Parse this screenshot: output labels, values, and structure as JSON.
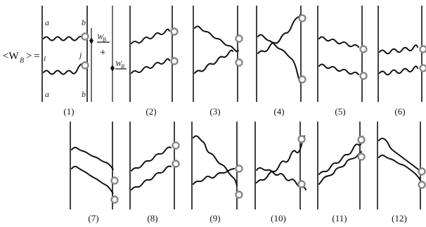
{
  "equation": {
    "lhs": "<W",
    "lhs_sub": "B",
    "lhs_close": ">",
    "equals": "=",
    "plus": "+",
    "op_label": "W",
    "op_sub": "B"
  },
  "line_labels": {
    "a": "a",
    "b": "b",
    "i": "i",
    "j": "j"
  },
  "panels": [
    {
      "label": "(1)"
    },
    {
      "label": "(2)"
    },
    {
      "label": "(3)"
    },
    {
      "label": "(4)"
    },
    {
      "label": "(5)"
    },
    {
      "label": "(6)"
    },
    {
      "label": "(7)"
    },
    {
      "label": "(8)"
    },
    {
      "label": "(9)"
    },
    {
      "label": "(10)"
    },
    {
      "label": "(11)"
    },
    {
      "label": "(12)"
    }
  ]
}
